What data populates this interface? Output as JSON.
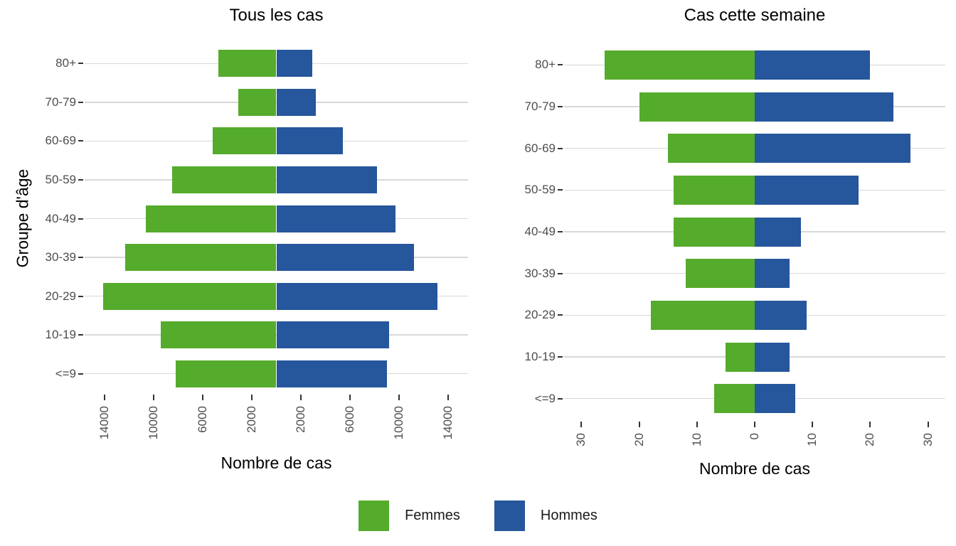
{
  "ylabel_shared": "Groupe d'âge",
  "colors": {
    "femmes": "#55AB2B",
    "hommes": "#26569B",
    "grid": "#D8D8D8",
    "axis_tick": "#333333",
    "tick_label": "#4D4D4D",
    "text": "#000000",
    "background": "#FFFFFF"
  },
  "legend": {
    "items": [
      {
        "label": "Femmes",
        "color": "#55AB2B"
      },
      {
        "label": "Hommes",
        "color": "#26569B"
      }
    ]
  },
  "chart_data": [
    {
      "type": "bar",
      "subtype": "population-pyramid",
      "title": "Tous les cas",
      "xlabel": "Nombre de cas",
      "ylabel": "Groupe d'âge",
      "categories": [
        "80+",
        "70-79",
        "60-69",
        "50-59",
        "40-49",
        "30-39",
        "20-29",
        "10-19",
        "<=9"
      ],
      "series": [
        {
          "name": "Femmes",
          "side": "left",
          "color": "#55AB2B",
          "values": [
            4700,
            3100,
            5200,
            8500,
            10600,
            12300,
            14100,
            9400,
            8200
          ]
        },
        {
          "name": "Hommes",
          "side": "right",
          "color": "#26569B",
          "values": [
            2900,
            3200,
            5400,
            8200,
            9700,
            11200,
            13100,
            9200,
            9000
          ]
        }
      ],
      "xlim": [
        -15600,
        15600
      ],
      "xticks": [
        {
          "value": -14000,
          "label": "14000"
        },
        {
          "value": -10000,
          "label": "10000"
        },
        {
          "value": -6000,
          "label": "6000"
        },
        {
          "value": -2000,
          "label": "2000"
        },
        {
          "value": 2000,
          "label": "2000"
        },
        {
          "value": 6000,
          "label": "6000"
        },
        {
          "value": 10000,
          "label": "10000"
        },
        {
          "value": 14000,
          "label": "14000"
        }
      ],
      "grid": "horizontal-major-only",
      "legend_position": "shared-bottom"
    },
    {
      "type": "bar",
      "subtype": "population-pyramid",
      "title": "Cas cette semaine",
      "xlabel": "Nombre de cas",
      "ylabel": "Groupe d'âge",
      "categories": [
        "80+",
        "70-79",
        "60-69",
        "50-59",
        "40-49",
        "30-39",
        "20-29",
        "10-19",
        "<=9"
      ],
      "series": [
        {
          "name": "Femmes",
          "side": "left",
          "color": "#55AB2B",
          "values": [
            26,
            20,
            15,
            14,
            14,
            12,
            18,
            5,
            7
          ]
        },
        {
          "name": "Hommes",
          "side": "right",
          "color": "#26569B",
          "values": [
            20,
            24,
            27,
            18,
            8,
            6,
            9,
            6,
            7
          ]
        }
      ],
      "xlim": [
        -33,
        33
      ],
      "xticks": [
        {
          "value": -30,
          "label": "30"
        },
        {
          "value": -20,
          "label": "20"
        },
        {
          "value": -10,
          "label": "10"
        },
        {
          "value": 0,
          "label": "0"
        },
        {
          "value": 10,
          "label": "10"
        },
        {
          "value": 20,
          "label": "20"
        },
        {
          "value": 30,
          "label": "30"
        }
      ],
      "grid": "horizontal-major-only",
      "legend_position": "shared-bottom"
    }
  ]
}
